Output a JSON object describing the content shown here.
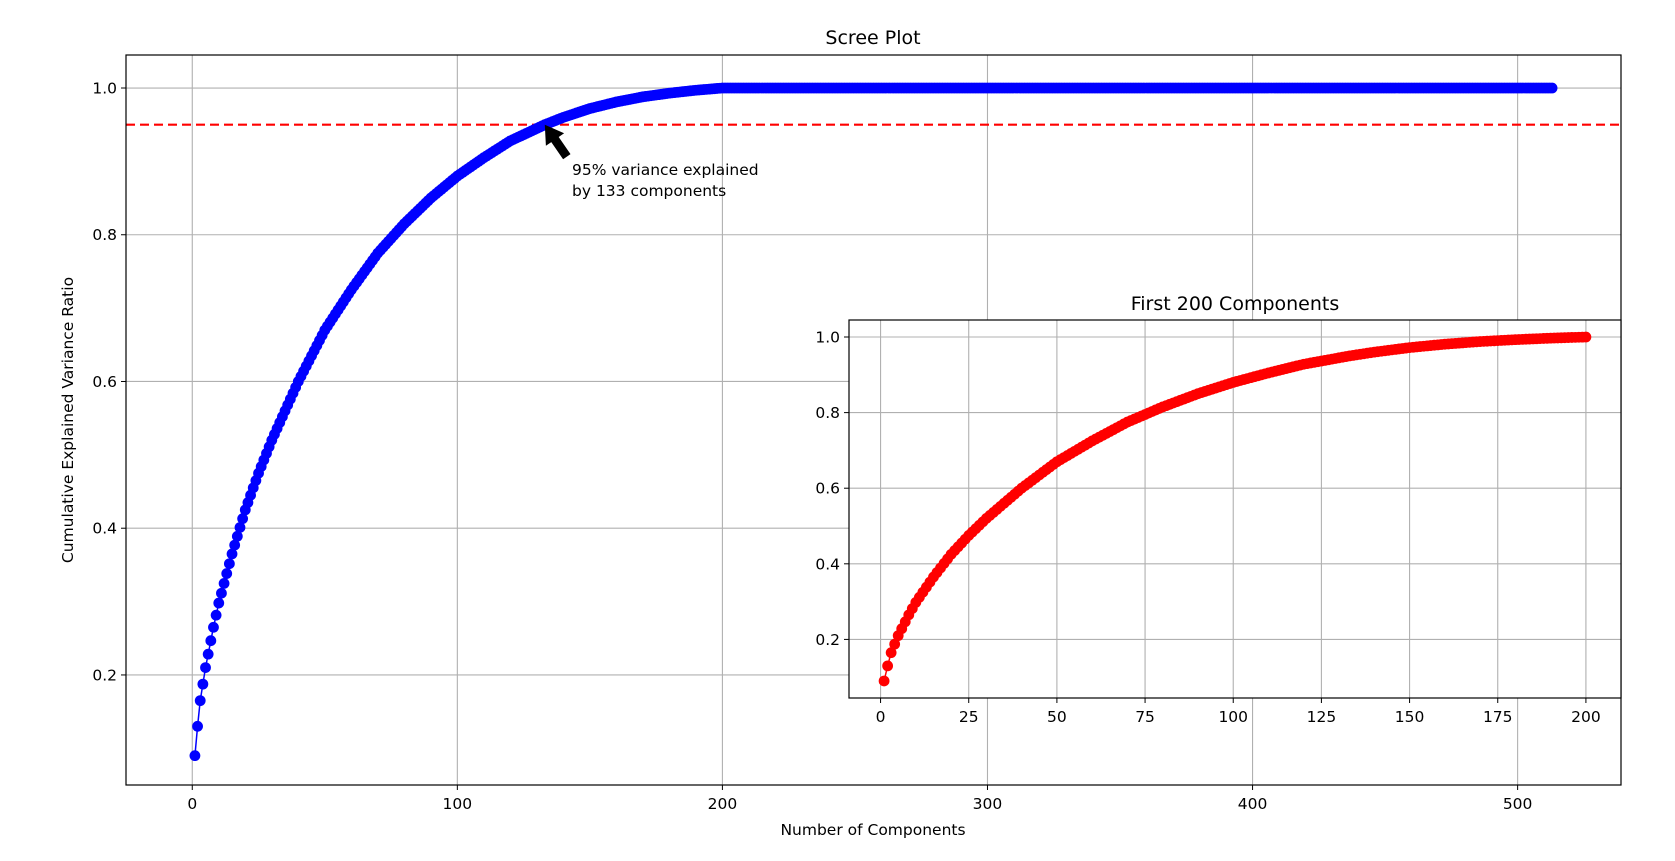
{
  "colors": {
    "main_series": "#0000ff",
    "inset_series": "#ff0000",
    "threshold_line": "#ff0000",
    "grid": "#b0b0b0",
    "arrow": "#000000"
  },
  "chart_data": [
    {
      "id": "main",
      "type": "line",
      "markers": true,
      "title": "Scree Plot",
      "xlabel": "Number of Components",
      "ylabel": "Cumulative Explained Variance Ratio",
      "xlim": [
        -25,
        539
      ],
      "ylim": [
        0.05,
        1.045
      ],
      "x_ticks": [
        0,
        100,
        200,
        300,
        400,
        500
      ],
      "y_ticks": [
        0.2,
        0.4,
        0.6,
        0.8,
        1.0
      ],
      "x_tick_labels": [
        "0",
        "100",
        "200",
        "300",
        "400",
        "500"
      ],
      "y_tick_labels": [
        "0.2",
        "0.4",
        "0.6",
        "0.8",
        "1.0"
      ],
      "grid": true,
      "legend": "none",
      "series": [
        {
          "x_range": [
            1,
            513
          ],
          "curve_points": [
            [
              1,
              0.09
            ],
            [
              2,
              0.13
            ],
            [
              3,
              0.165
            ],
            [
              5,
              0.21
            ],
            [
              8,
              0.265
            ],
            [
              10,
              0.298
            ],
            [
              15,
              0.365
            ],
            [
              20,
              0.425
            ],
            [
              25,
              0.475
            ],
            [
              30,
              0.52
            ],
            [
              40,
              0.6
            ],
            [
              50,
              0.67
            ],
            [
              60,
              0.725
            ],
            [
              70,
              0.775
            ],
            [
              80,
              0.815
            ],
            [
              90,
              0.85
            ],
            [
              100,
              0.88
            ],
            [
              110,
              0.905
            ],
            [
              120,
              0.928
            ],
            [
              133,
              0.95
            ],
            [
              140,
              0.96
            ],
            [
              150,
              0.972
            ],
            [
              160,
              0.981
            ],
            [
              170,
              0.988
            ],
            [
              180,
              0.993
            ],
            [
              190,
              0.997
            ],
            [
              200,
              1.0
            ],
            [
              513,
              1.0
            ]
          ]
        }
      ],
      "hline": {
        "y": 0.95,
        "style": "dashed"
      },
      "annotation": {
        "lines": [
          "95% variance explained",
          "by 133 components"
        ],
        "point": {
          "x": 133,
          "y": 0.95
        },
        "text_position": {
          "x": 143,
          "y": 0.9
        }
      }
    },
    {
      "id": "inset",
      "type": "line",
      "markers": true,
      "title": "First 200 Components",
      "xlabel": "",
      "ylabel": "",
      "xlim": [
        -8.95,
        209.95
      ],
      "ylim": [
        0.045,
        1.045
      ],
      "x_ticks": [
        0,
        25,
        50,
        75,
        100,
        125,
        150,
        175,
        200
      ],
      "y_ticks": [
        0.2,
        0.4,
        0.6,
        0.8,
        1.0
      ],
      "x_tick_labels": [
        "0",
        "25",
        "50",
        "75",
        "100",
        "125",
        "150",
        "175",
        "200"
      ],
      "y_tick_labels": [
        "0.2",
        "0.4",
        "0.6",
        "0.8",
        "1.0"
      ],
      "grid": true,
      "legend": "none",
      "series": [
        {
          "x_range": [
            1,
            200
          ],
          "curve_points": [
            [
              1,
              0.09
            ],
            [
              2,
              0.13
            ],
            [
              3,
              0.165
            ],
            [
              5,
              0.21
            ],
            [
              8,
              0.265
            ],
            [
              10,
              0.298
            ],
            [
              15,
              0.365
            ],
            [
              20,
              0.425
            ],
            [
              25,
              0.475
            ],
            [
              30,
              0.52
            ],
            [
              40,
              0.6
            ],
            [
              50,
              0.67
            ],
            [
              60,
              0.725
            ],
            [
              70,
              0.775
            ],
            [
              80,
              0.815
            ],
            [
              90,
              0.85
            ],
            [
              100,
              0.88
            ],
            [
              110,
              0.905
            ],
            [
              120,
              0.928
            ],
            [
              133,
              0.95
            ],
            [
              140,
              0.96
            ],
            [
              150,
              0.972
            ],
            [
              160,
              0.981
            ],
            [
              170,
              0.988
            ],
            [
              180,
              0.993
            ],
            [
              190,
              0.997
            ],
            [
              200,
              1.0
            ]
          ]
        }
      ]
    }
  ]
}
